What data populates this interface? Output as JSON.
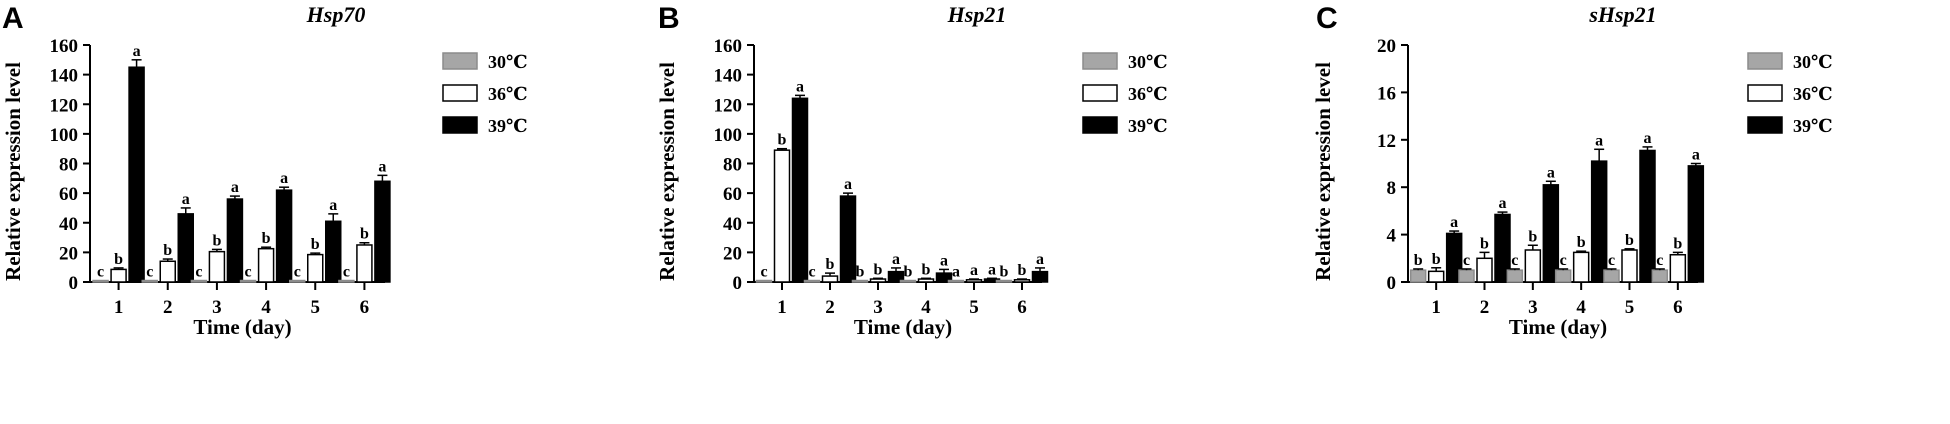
{
  "chart_data": [
    {
      "type": "bar",
      "panel_label": "A",
      "title": "Hsp70",
      "xlabel": "Time (day)",
      "ylabel": "Relative expression level",
      "categories": [
        "1",
        "2",
        "3",
        "4",
        "5",
        "6"
      ],
      "ylim": [
        0,
        160
      ],
      "yticks": [
        0,
        20,
        40,
        60,
        80,
        100,
        120,
        140,
        160
      ],
      "legend_position": "right",
      "series": [
        {
          "name": "30℃",
          "color": "#a6a6a6",
          "values": [
            1,
            1,
            1,
            1,
            1,
            1
          ],
          "errors": [
            0,
            0,
            0,
            0,
            0,
            0
          ],
          "letters": [
            "c",
            "c",
            "c",
            "c",
            "c",
            "c"
          ]
        },
        {
          "name": "36℃",
          "color": "#ffffff",
          "values": [
            8.5,
            14,
            20.5,
            22.5,
            18.5,
            25
          ],
          "errors": [
            1,
            1.5,
            1.5,
            1,
            1,
            1.5
          ],
          "letters": [
            "b",
            "b",
            "b",
            "b",
            "b",
            "b"
          ]
        },
        {
          "name": "39℃",
          "color": "#000000",
          "values": [
            145,
            46,
            56,
            62,
            41,
            68
          ],
          "errors": [
            5,
            4,
            2,
            2,
            5,
            4
          ],
          "letters": [
            "a",
            "a",
            "a",
            "a",
            "a",
            "a"
          ]
        }
      ]
    },
    {
      "type": "bar",
      "panel_label": "B",
      "title": "Hsp21",
      "xlabel": "Time (day)",
      "ylabel": "Relative expression level",
      "categories": [
        "1",
        "2",
        "3",
        "4",
        "5",
        "6"
      ],
      "ylim": [
        0,
        160
      ],
      "yticks": [
        0,
        20,
        40,
        60,
        80,
        100,
        120,
        140,
        160
      ],
      "legend_position": "right",
      "series": [
        {
          "name": "30℃",
          "color": "#a6a6a6",
          "values": [
            1,
            1,
            1,
            1,
            1,
            1
          ],
          "errors": [
            0,
            0,
            0,
            0,
            0,
            0
          ],
          "letters": [
            "c",
            "c",
            "b",
            "b",
            "a",
            "b"
          ]
        },
        {
          "name": "36℃",
          "color": "#ffffff",
          "values": [
            89,
            4,
            2,
            2,
            1.5,
            1.5
          ],
          "errors": [
            1,
            2,
            0.5,
            0.5,
            0.5,
            0.5
          ],
          "letters": [
            "b",
            "b",
            "b",
            "b",
            "a",
            "b"
          ]
        },
        {
          "name": "39℃",
          "color": "#000000",
          "values": [
            124,
            58,
            7,
            6,
            2,
            7
          ],
          "errors": [
            2,
            2,
            2.5,
            2.5,
            0.5,
            2.5
          ],
          "letters": [
            "a",
            "a",
            "a",
            "a",
            "a",
            "a"
          ]
        }
      ]
    },
    {
      "type": "bar",
      "panel_label": "C",
      "title": "sHsp21",
      "xlabel": "Time (day)",
      "ylabel": "Relative expression level",
      "categories": [
        "1",
        "2",
        "3",
        "4",
        "5",
        "6"
      ],
      "ylim": [
        0,
        20
      ],
      "yticks": [
        0,
        4,
        8,
        12,
        16,
        20
      ],
      "legend_position": "right",
      "series": [
        {
          "name": "30℃",
          "color": "#a6a6a6",
          "values": [
            1,
            1,
            1,
            1,
            1,
            1
          ],
          "errors": [
            0.1,
            0.1,
            0.1,
            0.1,
            0.1,
            0.1
          ],
          "letters": [
            "b",
            "c",
            "c",
            "c",
            "c",
            "c"
          ]
        },
        {
          "name": "36℃",
          "color": "#ffffff",
          "values": [
            0.9,
            2,
            2.7,
            2.5,
            2.7,
            2.3
          ],
          "errors": [
            0.3,
            0.5,
            0.4,
            0.1,
            0.1,
            0.2
          ],
          "letters": [
            "b",
            "b",
            "b",
            "b",
            "b",
            "b"
          ]
        },
        {
          "name": "39℃",
          "color": "#000000",
          "values": [
            4.1,
            5.7,
            8.2,
            10.2,
            11.1,
            9.8
          ],
          "errors": [
            0.2,
            0.2,
            0.3,
            1,
            0.3,
            0.2
          ],
          "letters": [
            "a",
            "a",
            "a",
            "a",
            "a",
            "a"
          ]
        }
      ]
    }
  ]
}
